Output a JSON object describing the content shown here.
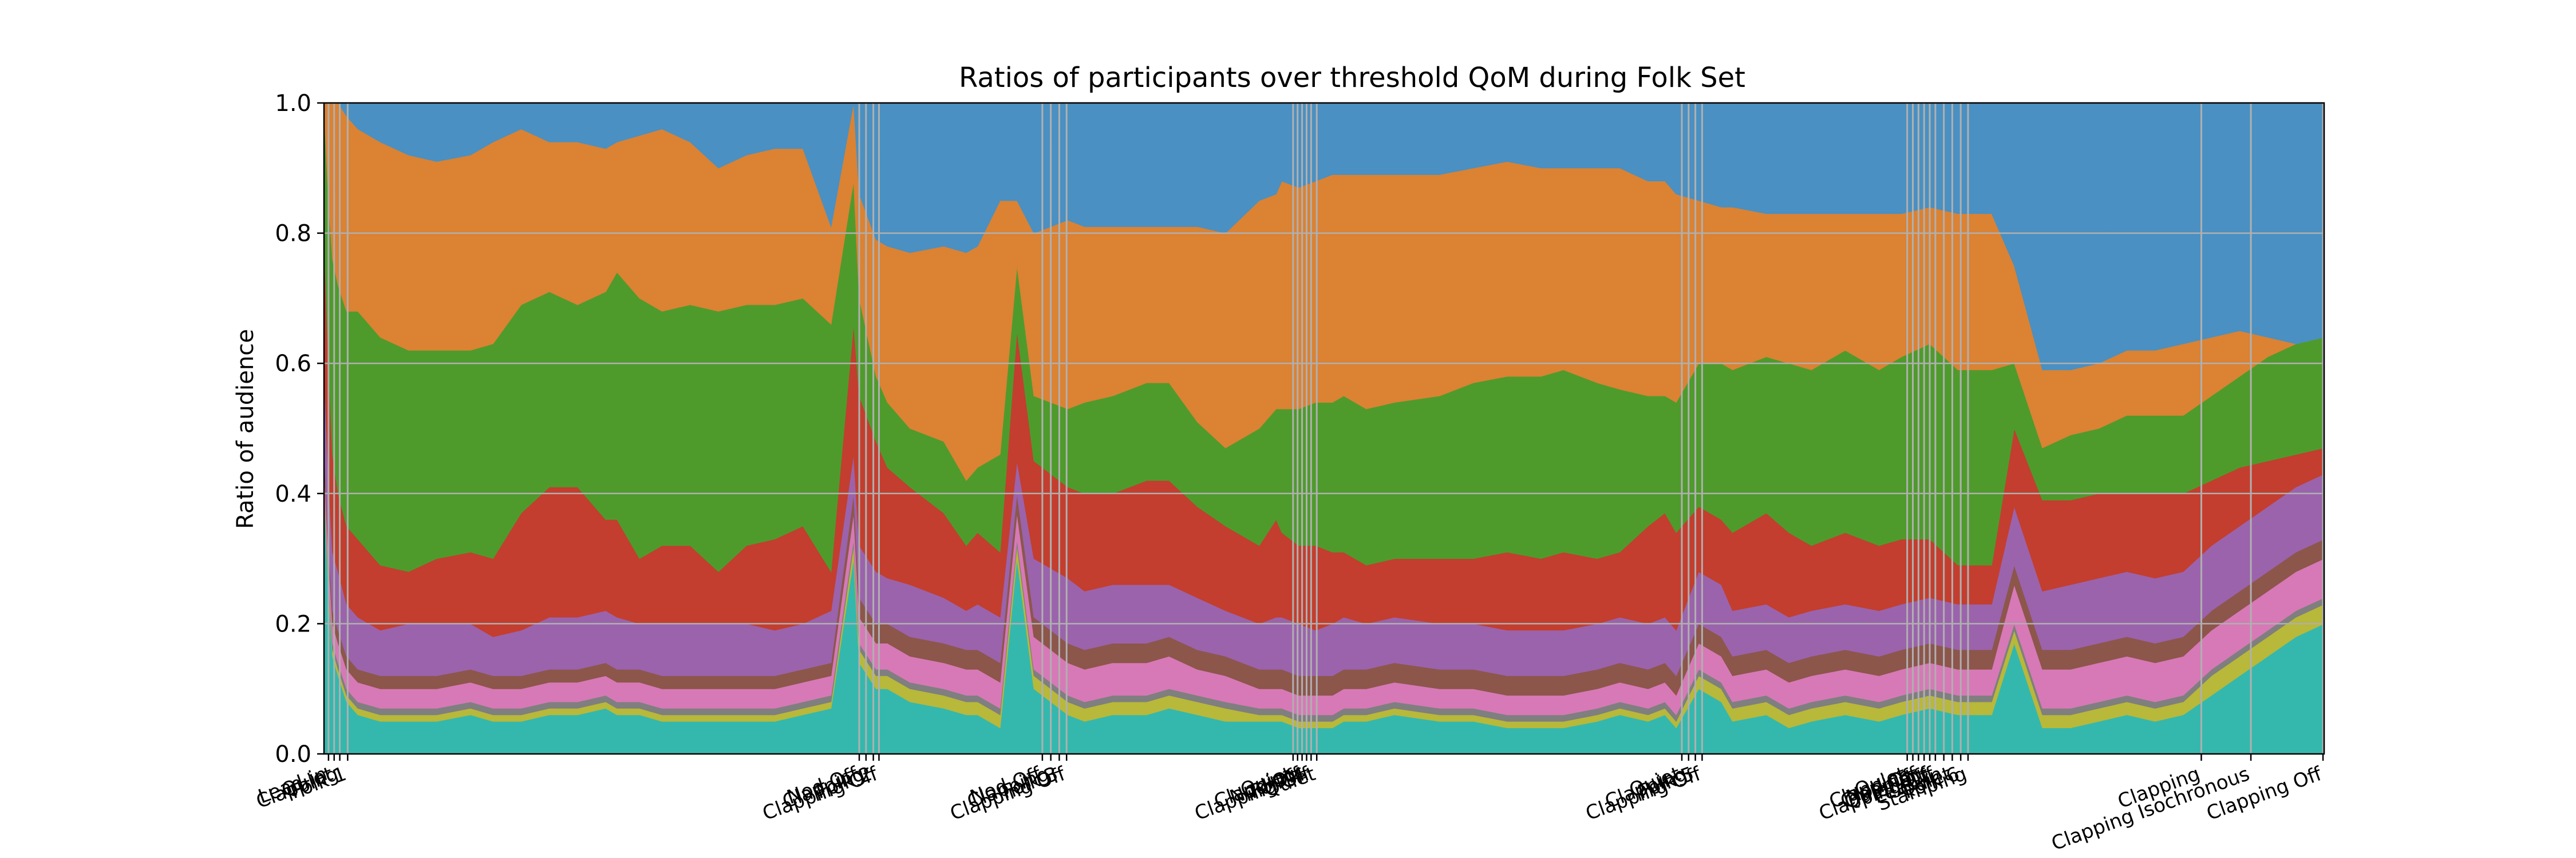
{
  "chart_data": {
    "type": "area",
    "title": "Ratios of participants over threshold QoM during Folk Set",
    "xlabel": "",
    "ylabel": "Ratio of audience",
    "ylim": [
      0,
      1
    ],
    "yticks": [
      "0.0",
      "0.2",
      "0.4",
      "0.6",
      "0.8",
      "1.0"
    ],
    "grid": true,
    "legend": "none",
    "x": [
      0,
      8,
      15,
      25,
      40,
      60,
      100,
      150,
      200,
      260,
      300,
      350,
      400,
      450,
      500,
      520,
      560,
      600,
      650,
      700,
      750,
      800,
      850,
      900,
      940,
      950,
      980,
      1000,
      1040,
      1100,
      1140,
      1160,
      1200,
      1230,
      1260,
      1320,
      1350,
      1400,
      1460,
      1500,
      1550,
      1600,
      1660,
      1690,
      1700,
      1730,
      1760,
      1790,
      1810,
      1850,
      1900,
      1980,
      2040,
      2100,
      2160,
      2200,
      2260,
      2300,
      2350,
      2380,
      2400,
      2440,
      2480,
      2500,
      2560,
      2600,
      2640,
      2700,
      2760,
      2800,
      2850,
      2900,
      2950,
      2960,
      3000,
      3050,
      3100,
      3150,
      3200,
      3250,
      3300,
      3350,
      3400,
      3450,
      3500,
      3550
    ],
    "series": [
      {
        "name": "",
        "color": "#34b8ad",
        "values": [
          0.4,
          0.25,
          0.15,
          0.12,
          0.08,
          0.06,
          0.05,
          0.05,
          0.05,
          0.06,
          0.05,
          0.05,
          0.06,
          0.06,
          0.07,
          0.06,
          0.06,
          0.05,
          0.05,
          0.05,
          0.05,
          0.05,
          0.06,
          0.07,
          0.3,
          0.14,
          0.1,
          0.1,
          0.08,
          0.07,
          0.06,
          0.06,
          0.04,
          0.3,
          0.1,
          0.06,
          0.05,
          0.06,
          0.06,
          0.07,
          0.06,
          0.05,
          0.05,
          0.05,
          0.05,
          0.04,
          0.04,
          0.04,
          0.05,
          0.05,
          0.06,
          0.05,
          0.05,
          0.04,
          0.04,
          0.04,
          0.05,
          0.06,
          0.05,
          0.06,
          0.04,
          0.1,
          0.08,
          0.05,
          0.06,
          0.04,
          0.05,
          0.06,
          0.05,
          0.06,
          0.07,
          0.06,
          0.06,
          0.06,
          0.17,
          0.04,
          0.04,
          0.05,
          0.06,
          0.05,
          0.06,
          0.09,
          0.12,
          0.15,
          0.18,
          0.2
        ]
      },
      {
        "name": "",
        "color": "#b8b83a",
        "values": [
          0.01,
          0.01,
          0.01,
          0.01,
          0.01,
          0.01,
          0.01,
          0.01,
          0.01,
          0.01,
          0.01,
          0.01,
          0.01,
          0.01,
          0.01,
          0.01,
          0.01,
          0.01,
          0.01,
          0.01,
          0.01,
          0.01,
          0.01,
          0.01,
          0.02,
          0.02,
          0.02,
          0.02,
          0.02,
          0.02,
          0.02,
          0.02,
          0.02,
          0.02,
          0.02,
          0.02,
          0.02,
          0.02,
          0.02,
          0.02,
          0.02,
          0.02,
          0.01,
          0.01,
          0.01,
          0.01,
          0.01,
          0.01,
          0.01,
          0.01,
          0.01,
          0.01,
          0.01,
          0.01,
          0.01,
          0.01,
          0.01,
          0.01,
          0.01,
          0.01,
          0.01,
          0.02,
          0.02,
          0.02,
          0.02,
          0.02,
          0.02,
          0.02,
          0.02,
          0.02,
          0.02,
          0.02,
          0.02,
          0.02,
          0.02,
          0.02,
          0.02,
          0.02,
          0.02,
          0.02,
          0.02,
          0.03,
          0.03,
          0.03,
          0.03,
          0.03
        ]
      },
      {
        "name": "",
        "color": "#7f7f7f",
        "values": [
          0.01,
          0.01,
          0.01,
          0.01,
          0.01,
          0.01,
          0.01,
          0.01,
          0.01,
          0.01,
          0.01,
          0.01,
          0.01,
          0.01,
          0.01,
          0.01,
          0.01,
          0.01,
          0.01,
          0.01,
          0.01,
          0.01,
          0.01,
          0.01,
          0.01,
          0.01,
          0.01,
          0.01,
          0.01,
          0.01,
          0.01,
          0.01,
          0.01,
          0.01,
          0.01,
          0.01,
          0.01,
          0.01,
          0.01,
          0.01,
          0.01,
          0.01,
          0.01,
          0.01,
          0.01,
          0.01,
          0.01,
          0.01,
          0.01,
          0.01,
          0.01,
          0.01,
          0.01,
          0.01,
          0.01,
          0.01,
          0.01,
          0.01,
          0.01,
          0.01,
          0.01,
          0.01,
          0.01,
          0.01,
          0.01,
          0.01,
          0.01,
          0.01,
          0.01,
          0.01,
          0.01,
          0.01,
          0.01,
          0.01,
          0.01,
          0.01,
          0.01,
          0.01,
          0.01,
          0.01,
          0.01,
          0.01,
          0.01,
          0.01,
          0.01,
          0.01
        ]
      },
      {
        "name": "",
        "color": "#d779b6",
        "values": [
          0.03,
          0.03,
          0.03,
          0.03,
          0.03,
          0.03,
          0.03,
          0.03,
          0.03,
          0.03,
          0.03,
          0.03,
          0.03,
          0.03,
          0.03,
          0.03,
          0.03,
          0.03,
          0.03,
          0.03,
          0.03,
          0.03,
          0.03,
          0.03,
          0.04,
          0.04,
          0.04,
          0.04,
          0.04,
          0.04,
          0.04,
          0.04,
          0.04,
          0.04,
          0.05,
          0.05,
          0.05,
          0.05,
          0.05,
          0.05,
          0.04,
          0.04,
          0.03,
          0.03,
          0.03,
          0.03,
          0.03,
          0.03,
          0.03,
          0.03,
          0.03,
          0.03,
          0.03,
          0.03,
          0.03,
          0.03,
          0.03,
          0.03,
          0.03,
          0.03,
          0.03,
          0.04,
          0.04,
          0.04,
          0.04,
          0.04,
          0.04,
          0.04,
          0.04,
          0.04,
          0.04,
          0.04,
          0.04,
          0.04,
          0.06,
          0.06,
          0.06,
          0.06,
          0.06,
          0.06,
          0.06,
          0.06,
          0.06,
          0.06,
          0.06,
          0.06
        ]
      },
      {
        "name": "",
        "color": "#8c564b",
        "values": [
          0.02,
          0.02,
          0.02,
          0.02,
          0.02,
          0.02,
          0.02,
          0.02,
          0.02,
          0.02,
          0.02,
          0.02,
          0.02,
          0.02,
          0.02,
          0.02,
          0.02,
          0.02,
          0.02,
          0.02,
          0.02,
          0.02,
          0.02,
          0.02,
          0.03,
          0.03,
          0.03,
          0.03,
          0.03,
          0.03,
          0.03,
          0.03,
          0.03,
          0.03,
          0.03,
          0.03,
          0.03,
          0.03,
          0.03,
          0.03,
          0.03,
          0.03,
          0.03,
          0.03,
          0.03,
          0.03,
          0.03,
          0.03,
          0.03,
          0.03,
          0.03,
          0.03,
          0.03,
          0.03,
          0.03,
          0.03,
          0.03,
          0.03,
          0.03,
          0.03,
          0.03,
          0.03,
          0.03,
          0.03,
          0.03,
          0.03,
          0.03,
          0.03,
          0.03,
          0.03,
          0.03,
          0.03,
          0.03,
          0.03,
          0.03,
          0.03,
          0.03,
          0.03,
          0.03,
          0.03,
          0.03,
          0.03,
          0.03,
          0.03,
          0.03,
          0.03
        ]
      },
      {
        "name": "",
        "color": "#9b63ac",
        "values": [
          0.12,
          0.1,
          0.09,
          0.09,
          0.08,
          0.08,
          0.07,
          0.08,
          0.08,
          0.07,
          0.06,
          0.07,
          0.08,
          0.08,
          0.08,
          0.08,
          0.07,
          0.08,
          0.08,
          0.08,
          0.08,
          0.07,
          0.07,
          0.08,
          0.06,
          0.08,
          0.08,
          0.07,
          0.08,
          0.07,
          0.06,
          0.07,
          0.07,
          0.05,
          0.09,
          0.1,
          0.09,
          0.09,
          0.09,
          0.08,
          0.08,
          0.07,
          0.07,
          0.08,
          0.08,
          0.08,
          0.07,
          0.08,
          0.08,
          0.07,
          0.07,
          0.07,
          0.07,
          0.07,
          0.07,
          0.07,
          0.07,
          0.07,
          0.07,
          0.07,
          0.07,
          0.08,
          0.08,
          0.07,
          0.07,
          0.07,
          0.07,
          0.07,
          0.07,
          0.07,
          0.07,
          0.07,
          0.07,
          0.07,
          0.09,
          0.09,
          0.1,
          0.1,
          0.1,
          0.1,
          0.1,
          0.1,
          0.1,
          0.1,
          0.1,
          0.1
        ]
      },
      {
        "name": "",
        "color": "#c33e2e",
        "values": [
          0.2,
          0.18,
          0.15,
          0.12,
          0.12,
          0.12,
          0.1,
          0.08,
          0.1,
          0.11,
          0.12,
          0.18,
          0.2,
          0.2,
          0.14,
          0.15,
          0.1,
          0.12,
          0.12,
          0.08,
          0.12,
          0.14,
          0.15,
          0.06,
          0.2,
          0.23,
          0.2,
          0.17,
          0.15,
          0.13,
          0.1,
          0.11,
          0.1,
          0.2,
          0.15,
          0.14,
          0.15,
          0.14,
          0.16,
          0.16,
          0.14,
          0.13,
          0.12,
          0.15,
          0.13,
          0.12,
          0.13,
          0.11,
          0.1,
          0.09,
          0.09,
          0.1,
          0.1,
          0.12,
          0.11,
          0.12,
          0.1,
          0.1,
          0.15,
          0.16,
          0.15,
          0.1,
          0.1,
          0.12,
          0.14,
          0.13,
          0.1,
          0.11,
          0.1,
          0.1,
          0.09,
          0.06,
          0.06,
          0.06,
          0.12,
          0.14,
          0.13,
          0.13,
          0.12,
          0.13,
          0.12,
          0.1,
          0.09,
          0.07,
          0.05,
          0.04
        ]
      },
      {
        "name": "",
        "color": "#4e9b2c",
        "values": [
          0.2,
          0.25,
          0.3,
          0.32,
          0.33,
          0.35,
          0.35,
          0.34,
          0.32,
          0.31,
          0.33,
          0.32,
          0.3,
          0.28,
          0.35,
          0.38,
          0.4,
          0.36,
          0.37,
          0.4,
          0.37,
          0.36,
          0.35,
          0.38,
          0.22,
          0.15,
          0.1,
          0.1,
          0.09,
          0.11,
          0.1,
          0.1,
          0.15,
          0.1,
          0.1,
          0.12,
          0.14,
          0.15,
          0.15,
          0.15,
          0.13,
          0.12,
          0.18,
          0.17,
          0.19,
          0.21,
          0.22,
          0.23,
          0.24,
          0.24,
          0.24,
          0.25,
          0.27,
          0.27,
          0.28,
          0.28,
          0.27,
          0.25,
          0.2,
          0.18,
          0.2,
          0.22,
          0.24,
          0.25,
          0.24,
          0.26,
          0.27,
          0.28,
          0.27,
          0.28,
          0.3,
          0.3,
          0.3,
          0.3,
          0.1,
          0.08,
          0.1,
          0.1,
          0.12,
          0.12,
          0.12,
          0.13,
          0.14,
          0.16,
          0.17,
          0.17
        ]
      },
      {
        "name": "",
        "color": "#db8233",
        "values": [
          0.22,
          0.26,
          0.27,
          0.29,
          0.3,
          0.28,
          0.3,
          0.3,
          0.29,
          0.3,
          0.31,
          0.27,
          0.23,
          0.25,
          0.22,
          0.2,
          0.25,
          0.28,
          0.25,
          0.22,
          0.23,
          0.24,
          0.23,
          0.15,
          0.27,
          0.16,
          0.21,
          0.24,
          0.27,
          0.3,
          0.35,
          0.34,
          0.39,
          0.1,
          0.25,
          0.29,
          0.27,
          0.26,
          0.24,
          0.24,
          0.3,
          0.33,
          0.35,
          0.33,
          0.35,
          0.34,
          0.34,
          0.35,
          0.34,
          0.36,
          0.35,
          0.34,
          0.33,
          0.33,
          0.32,
          0.31,
          0.33,
          0.34,
          0.33,
          0.33,
          0.32,
          0.25,
          0.24,
          0.25,
          0.22,
          0.23,
          0.24,
          0.21,
          0.24,
          0.22,
          0.21,
          0.24,
          0.24,
          0.24,
          0.15,
          0.12,
          0.1,
          0.1,
          0.1,
          0.1,
          0.11,
          0.09,
          0.07,
          0.03,
          0.0,
          0.0
        ]
      },
      {
        "name": "",
        "color": "#4a90c2",
        "values": [
          0.09,
          0.09,
          0.09,
          0.09,
          0.09,
          0.09,
          0.09,
          0.09,
          0.1,
          0.1,
          0.1,
          0.1,
          0.11,
          0.11,
          0.11,
          0.11,
          0.11,
          0.11,
          0.12,
          0.12,
          0.12,
          0.12,
          0.12,
          0.13,
          0.13,
          0.13,
          0.13,
          0.13,
          0.13,
          0.13,
          0.13,
          0.13,
          0.13,
          0.14,
          0.14,
          0.14,
          0.14,
          0.14,
          0.14,
          0.14,
          0.14,
          0.15,
          0.15,
          0.15,
          0.15,
          0.15,
          0.15,
          0.15,
          0.15,
          0.15,
          0.15,
          0.15,
          0.15,
          0.15,
          0.15,
          0.15,
          0.15,
          0.15,
          0.15,
          0.15,
          0.15,
          0.15,
          0.15,
          0.15,
          0.15,
          0.15,
          0.15,
          0.15,
          0.15,
          0.15,
          0.15,
          0.15,
          0.15,
          0.15,
          0.15,
          0.2,
          0.2,
          0.2,
          0.2,
          0.2,
          0.2,
          0.2,
          0.2,
          0.2,
          0.2,
          0.2
        ]
      }
    ],
    "xlim": [
      0,
      3550
    ],
    "events": [
      {
        "x": 8,
        "label": "Lead-in"
      },
      {
        "x": 18,
        "label": "Quiet"
      },
      {
        "x": 28,
        "label": "Clapping"
      },
      {
        "x": 42,
        "label": "Folk 1"
      },
      {
        "x": 950,
        "label": "Nod Off"
      },
      {
        "x": 962,
        "label": "Clapping"
      },
      {
        "x": 975,
        "label": "Folk 2"
      },
      {
        "x": 985,
        "label": "Clapping Off"
      },
      {
        "x": 1275,
        "label": "Nod Off"
      },
      {
        "x": 1290,
        "label": "Clapping"
      },
      {
        "x": 1305,
        "label": "Folk 3"
      },
      {
        "x": 1318,
        "label": "Clapping Off"
      },
      {
        "x": 1720,
        "label": "Quiet"
      },
      {
        "x": 1728,
        "label": "Clapping"
      },
      {
        "x": 1736,
        "label": "Nod Off"
      },
      {
        "x": 1744,
        "label": "Folk 4"
      },
      {
        "x": 1752,
        "label": "Clapping Off"
      },
      {
        "x": 1762,
        "label": "Quiet"
      },
      {
        "x": 2410,
        "label": "Quiet"
      },
      {
        "x": 2422,
        "label": "Clapping"
      },
      {
        "x": 2434,
        "label": "Folk 5"
      },
      {
        "x": 2446,
        "label": "Clapping Off"
      },
      {
        "x": 2810,
        "label": "Quiet"
      },
      {
        "x": 2820,
        "label": "Clapping"
      },
      {
        "x": 2830,
        "label": "Nod Off"
      },
      {
        "x": 2840,
        "label": "Clapping"
      },
      {
        "x": 2850,
        "label": "Quiet Off"
      },
      {
        "x": 2860,
        "label": "Clapping Off"
      },
      {
        "x": 2875,
        "label": "Lead-in"
      },
      {
        "x": 2890,
        "label": "Quiet"
      },
      {
        "x": 2905,
        "label": "Folk 6"
      },
      {
        "x": 2918,
        "label": "Stamping"
      },
      {
        "x": 3332,
        "label": "Clapping"
      },
      {
        "x": 3420,
        "label": "Clapping Isochronous"
      },
      {
        "x": 3548,
        "label": "Clapping Off"
      }
    ]
  }
}
